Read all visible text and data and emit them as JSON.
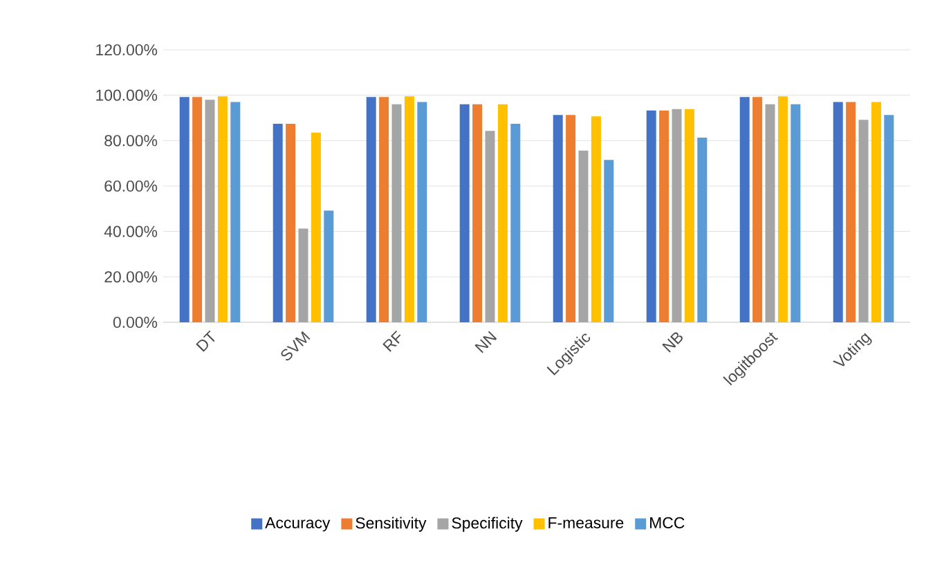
{
  "chart_data": {
    "type": "bar",
    "categories": [
      "DT",
      "SVM",
      "RF",
      "NN",
      "Logistic",
      "NB",
      "logitboost",
      "Voting"
    ],
    "series": [
      {
        "name": "Accuracy",
        "color": "#4472c4",
        "values": [
          99.2,
          87.4,
          99.2,
          96,
          91.3,
          93.3,
          99.2,
          97
        ]
      },
      {
        "name": "Sensitivity",
        "color": "#ed7d31",
        "values": [
          99.2,
          87.4,
          99.2,
          96,
          91.3,
          93.3,
          99.2,
          97
        ]
      },
      {
        "name": "Specificity",
        "color": "#a5a5a5",
        "values": [
          98,
          41.3,
          96,
          84.3,
          75.6,
          93.9,
          96,
          89.2
        ]
      },
      {
        "name": "F-measure",
        "color": "#ffc000",
        "values": [
          99.5,
          83.5,
          99.5,
          96,
          90.7,
          93.9,
          99.5,
          97
        ]
      },
      {
        "name": "MCC",
        "color": "#5b9bd5",
        "values": [
          97,
          49.2,
          97,
          87.4,
          71.5,
          81.3,
          96,
          91.3
        ]
      }
    ],
    "ylim": [
      0,
      120
    ],
    "yticks": [
      {
        "value": 0,
        "label": "0.00%"
      },
      {
        "value": 20,
        "label": "20.00%"
      },
      {
        "value": 40,
        "label": "40.00%"
      },
      {
        "value": 60,
        "label": "60.00%"
      },
      {
        "value": 80,
        "label": "80.00%"
      },
      {
        "value": 100,
        "label": "100.00%"
      },
      {
        "value": 120,
        "label": "120.00%"
      }
    ],
    "grid": "y",
    "legend": "bottom"
  }
}
